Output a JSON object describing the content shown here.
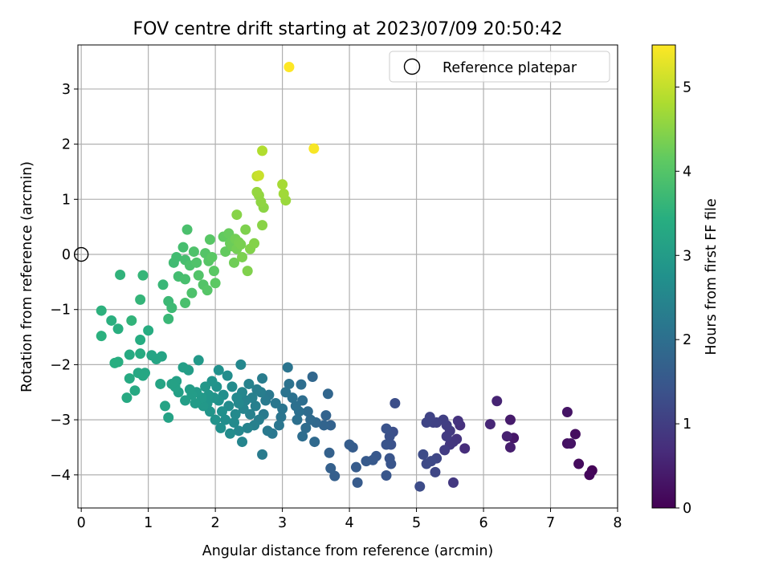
{
  "chart_data": {
    "type": "scatter",
    "title": "FOV centre drift starting at 2023/07/09 20:50:42",
    "xlabel": "Angular distance from reference (arcmin)",
    "ylabel": "Rotation from reference (arcmin)",
    "xlim": [
      -0.05,
      8.0
    ],
    "ylim": [
      -4.6,
      3.8
    ],
    "xticks": [
      0,
      1,
      2,
      3,
      4,
      5,
      6,
      7,
      8
    ],
    "yticks": [
      -4,
      -3,
      -2,
      -1,
      0,
      1,
      2,
      3
    ],
    "grid": true,
    "legend": {
      "location": "upper-right",
      "entries": [
        "Reference platepar"
      ]
    },
    "reference_point": {
      "x": 0,
      "y": 0
    },
    "colorbar": {
      "label": "Hours from first FF file",
      "range": [
        0,
        5.5
      ],
      "ticks": [
        0,
        1,
        2,
        3,
        4,
        5
      ],
      "colormap": "viridis"
    },
    "series": [
      {
        "values": [
          [
            7.62,
            -3.92,
            0.05
          ],
          [
            7.58,
            -4.0,
            0.1
          ],
          [
            7.42,
            -3.8,
            0.15
          ],
          [
            7.37,
            -3.26,
            0.2
          ],
          [
            7.25,
            -3.43,
            0.25
          ],
          [
            7.3,
            -3.43,
            0.28
          ],
          [
            7.25,
            -2.86,
            0.3
          ],
          [
            6.45,
            -3.33,
            0.35
          ],
          [
            6.4,
            -3.0,
            0.4
          ],
          [
            6.4,
            -3.5,
            0.45
          ],
          [
            6.35,
            -3.3,
            0.5
          ],
          [
            6.2,
            -2.66,
            0.55
          ],
          [
            6.1,
            -3.08,
            0.6
          ],
          [
            5.72,
            -3.52,
            0.7
          ],
          [
            5.65,
            -3.1,
            0.75
          ],
          [
            5.62,
            -3.02,
            0.8
          ],
          [
            5.6,
            -3.35,
            0.82
          ],
          [
            5.55,
            -3.4,
            0.85
          ],
          [
            5.5,
            -3.45,
            0.88
          ],
          [
            5.55,
            -4.14,
            0.9
          ],
          [
            5.5,
            -3.2,
            0.92
          ],
          [
            5.45,
            -3.3,
            0.95
          ],
          [
            5.42,
            -3.55,
            0.97
          ],
          [
            5.45,
            -3.1,
            1.0
          ],
          [
            5.4,
            -3.0,
            1.02
          ],
          [
            5.3,
            -3.05,
            1.05
          ],
          [
            5.25,
            -3.05,
            1.07
          ],
          [
            5.2,
            -2.95,
            1.1
          ],
          [
            5.15,
            -3.05,
            1.12
          ],
          [
            5.3,
            -3.7,
            1.15
          ],
          [
            5.28,
            -3.95,
            1.17
          ],
          [
            5.22,
            -3.75,
            1.2
          ],
          [
            5.15,
            -3.8,
            1.22
          ],
          [
            5.1,
            -3.63,
            1.25
          ],
          [
            5.05,
            -4.21,
            1.27
          ],
          [
            4.68,
            -2.7,
            1.3
          ],
          [
            4.65,
            -3.22,
            1.32
          ],
          [
            4.6,
            -3.3,
            1.35
          ],
          [
            4.62,
            -3.45,
            1.37
          ],
          [
            4.55,
            -3.16,
            1.4
          ],
          [
            4.55,
            -3.45,
            1.42
          ],
          [
            4.6,
            -3.7,
            1.44
          ],
          [
            4.62,
            -3.8,
            1.45
          ],
          [
            4.55,
            -4.01,
            1.47
          ],
          [
            4.4,
            -3.66,
            1.5
          ],
          [
            4.35,
            -3.73,
            1.52
          ],
          [
            4.25,
            -3.75,
            1.54
          ],
          [
            4.12,
            -4.14,
            1.56
          ],
          [
            4.1,
            -3.86,
            1.58
          ],
          [
            4.05,
            -3.5,
            1.6
          ],
          [
            4.0,
            -3.45,
            1.62
          ],
          [
            3.78,
            -4.02,
            1.65
          ],
          [
            3.72,
            -3.88,
            1.67
          ],
          [
            3.7,
            -3.6,
            1.7
          ],
          [
            3.72,
            -3.1,
            1.72
          ],
          [
            3.65,
            -2.92,
            1.75
          ],
          [
            3.62,
            -3.1,
            1.77
          ],
          [
            3.68,
            -2.53,
            1.8
          ],
          [
            3.45,
            -2.22,
            1.82
          ],
          [
            3.5,
            -3.05,
            1.85
          ],
          [
            3.48,
            -3.4,
            1.87
          ],
          [
            3.42,
            -3.0,
            1.9
          ],
          [
            3.38,
            -2.85,
            1.92
          ],
          [
            3.35,
            -3.15,
            1.94
          ],
          [
            3.3,
            -3.3,
            1.95
          ],
          [
            3.3,
            -2.65,
            1.97
          ],
          [
            3.28,
            -2.36,
            1.98
          ],
          [
            3.25,
            -2.85,
            2.0
          ],
          [
            3.22,
            -3.0,
            2.02
          ],
          [
            3.2,
            -2.75,
            2.03
          ],
          [
            3.15,
            -2.6,
            2.05
          ],
          [
            3.1,
            -2.35,
            2.07
          ],
          [
            3.05,
            -2.5,
            2.08
          ],
          [
            3.08,
            -2.05,
            2.1
          ],
          [
            3.0,
            -2.8,
            2.12
          ],
          [
            2.98,
            -2.95,
            2.13
          ],
          [
            2.95,
            -3.1,
            2.15
          ],
          [
            2.9,
            -2.7,
            2.17
          ],
          [
            2.85,
            -3.25,
            2.18
          ],
          [
            2.8,
            -2.55,
            2.2
          ],
          [
            2.78,
            -3.2,
            2.22
          ],
          [
            2.75,
            -2.65,
            2.23
          ],
          [
            2.72,
            -2.9,
            2.25
          ],
          [
            2.7,
            -3.63,
            2.27
          ],
          [
            2.7,
            -2.25,
            2.28
          ],
          [
            2.68,
            -2.5,
            2.3
          ],
          [
            2.65,
            -3.0,
            2.32
          ],
          [
            2.62,
            -2.45,
            2.33
          ],
          [
            2.6,
            -2.75,
            2.35
          ],
          [
            2.58,
            -3.1,
            2.37
          ],
          [
            2.55,
            -2.6,
            2.38
          ],
          [
            2.52,
            -2.9,
            2.4
          ],
          [
            2.5,
            -2.35,
            2.42
          ],
          [
            2.48,
            -3.15,
            2.43
          ],
          [
            2.45,
            -2.65,
            2.45
          ],
          [
            2.42,
            -2.8,
            2.47
          ],
          [
            2.4,
            -3.4,
            2.48
          ],
          [
            2.4,
            -2.5,
            2.5
          ],
          [
            2.38,
            -2.0,
            2.52
          ],
          [
            2.35,
            -3.2,
            2.53
          ],
          [
            2.35,
            -2.7,
            2.55
          ],
          [
            2.32,
            -2.6,
            2.57
          ],
          [
            2.3,
            -2.9,
            2.58
          ],
          [
            2.28,
            -3.05,
            2.6
          ],
          [
            2.25,
            -2.4,
            2.62
          ],
          [
            2.22,
            -3.25,
            2.63
          ],
          [
            2.2,
            -2.75,
            2.65
          ],
          [
            2.18,
            -2.2,
            2.67
          ],
          [
            2.15,
            -3.0,
            2.68
          ],
          [
            2.12,
            -2.55,
            2.7
          ],
          [
            2.1,
            -2.85,
            2.72
          ],
          [
            2.08,
            -3.15,
            2.73
          ],
          [
            2.05,
            -2.1,
            2.75
          ],
          [
            2.05,
            -2.65,
            2.77
          ],
          [
            2.02,
            -2.4,
            2.78
          ],
          [
            2.0,
            -3.0,
            2.8
          ],
          [
            1.98,
            -2.6,
            2.82
          ],
          [
            1.95,
            -2.3,
            2.83
          ],
          [
            1.92,
            -2.85,
            2.85
          ],
          [
            1.9,
            -2.55,
            2.87
          ],
          [
            1.88,
            -2.7,
            2.88
          ],
          [
            1.85,
            -2.4,
            2.9
          ],
          [
            1.82,
            -2.75,
            2.92
          ],
          [
            1.8,
            -2.6,
            2.93
          ],
          [
            1.75,
            -1.92,
            2.95
          ],
          [
            1.72,
            -2.5,
            2.97
          ],
          [
            1.7,
            -2.7,
            2.98
          ],
          [
            1.65,
            -2.55,
            3.0
          ],
          [
            1.62,
            -2.45,
            3.02
          ],
          [
            1.6,
            -2.1,
            3.03
          ],
          [
            1.55,
            -2.65,
            3.05
          ],
          [
            1.52,
            -2.05,
            3.07
          ],
          [
            1.45,
            -2.5,
            3.08
          ],
          [
            1.42,
            -2.3,
            3.1
          ],
          [
            1.4,
            -2.4,
            3.12
          ],
          [
            1.35,
            -2.35,
            3.13
          ],
          [
            1.3,
            -2.96,
            3.15
          ],
          [
            1.25,
            -2.75,
            3.17
          ],
          [
            1.2,
            -1.85,
            3.18
          ],
          [
            1.18,
            -2.35,
            3.2
          ],
          [
            1.12,
            -1.9,
            3.22
          ],
          [
            1.05,
            -1.83,
            3.23
          ],
          [
            0.95,
            -2.15,
            3.25
          ],
          [
            0.92,
            -2.2,
            3.27
          ],
          [
            0.85,
            -2.15,
            3.28
          ],
          [
            0.8,
            -2.47,
            3.3
          ],
          [
            0.72,
            -2.25,
            3.32
          ],
          [
            0.68,
            -2.6,
            3.33
          ],
          [
            0.72,
            -1.82,
            3.35
          ],
          [
            0.88,
            -1.8,
            3.37
          ],
          [
            0.88,
            -1.55,
            3.38
          ],
          [
            1.0,
            -1.38,
            3.4
          ],
          [
            0.55,
            -1.95,
            3.42
          ],
          [
            0.5,
            -1.97,
            3.43
          ],
          [
            0.55,
            -1.35,
            3.45
          ],
          [
            0.45,
            -1.2,
            3.47
          ],
          [
            0.3,
            -1.48,
            3.48
          ],
          [
            0.3,
            -1.02,
            3.5
          ],
          [
            0.58,
            -0.37,
            3.55
          ],
          [
            0.75,
            -1.2,
            3.57
          ],
          [
            0.88,
            -0.82,
            3.6
          ],
          [
            0.92,
            -0.38,
            3.62
          ],
          [
            1.22,
            -0.55,
            3.65
          ],
          [
            1.3,
            -1.17,
            3.67
          ],
          [
            1.3,
            -0.85,
            3.7
          ],
          [
            1.35,
            -0.97,
            3.72
          ],
          [
            1.38,
            -0.15,
            3.75
          ],
          [
            1.42,
            -0.05,
            3.77
          ],
          [
            1.45,
            -0.4,
            3.8
          ],
          [
            1.52,
            0.13,
            3.82
          ],
          [
            1.55,
            -0.1,
            3.83
          ],
          [
            1.55,
            -0.45,
            3.85
          ],
          [
            1.55,
            -0.88,
            3.87
          ],
          [
            1.58,
            0.45,
            3.88
          ],
          [
            1.62,
            -0.2,
            3.9
          ],
          [
            1.65,
            -0.7,
            3.92
          ],
          [
            1.68,
            0.05,
            3.93
          ],
          [
            1.72,
            -0.15,
            3.95
          ],
          [
            1.75,
            -0.38,
            3.97
          ],
          [
            1.82,
            -0.55,
            3.98
          ],
          [
            1.85,
            0.02,
            4.0
          ],
          [
            1.88,
            -0.65,
            4.02
          ],
          [
            1.9,
            -0.12,
            4.03
          ],
          [
            1.92,
            0.27,
            4.05
          ],
          [
            1.95,
            -0.05,
            4.07
          ],
          [
            1.98,
            -0.3,
            4.08
          ],
          [
            2.0,
            -0.52,
            4.1
          ],
          [
            2.12,
            0.32,
            4.15
          ],
          [
            2.15,
            0.05,
            4.17
          ],
          [
            2.2,
            0.38,
            4.2
          ],
          [
            2.22,
            0.2,
            4.22
          ],
          [
            2.25,
            0.15,
            4.25
          ],
          [
            2.28,
            -0.15,
            4.27
          ],
          [
            2.3,
            0.28,
            4.3
          ],
          [
            2.32,
            0.1,
            4.32
          ],
          [
            2.35,
            0.22,
            4.34
          ],
          [
            2.38,
            0.18,
            4.36
          ],
          [
            2.4,
            -0.05,
            4.38
          ],
          [
            2.45,
            0.45,
            4.4
          ],
          [
            2.48,
            -0.3,
            4.42
          ],
          [
            2.52,
            0.1,
            4.44
          ],
          [
            2.58,
            0.2,
            4.46
          ],
          [
            2.32,
            0.72,
            4.48
          ],
          [
            2.7,
            0.53,
            4.5
          ],
          [
            2.72,
            0.85,
            4.52
          ],
          [
            2.68,
            0.95,
            4.55
          ],
          [
            2.65,
            1.07,
            4.57
          ],
          [
            2.62,
            1.13,
            4.6
          ],
          [
            3.05,
            0.98,
            4.65
          ],
          [
            3.02,
            1.1,
            4.7
          ],
          [
            3.0,
            1.27,
            4.75
          ],
          [
            2.7,
            1.88,
            4.85
          ],
          [
            2.62,
            1.42,
            4.95
          ],
          [
            2.65,
            1.43,
            5.05
          ],
          [
            3.1,
            3.4,
            5.5
          ],
          [
            3.47,
            1.92,
            5.45
          ]
        ]
      }
    ]
  }
}
